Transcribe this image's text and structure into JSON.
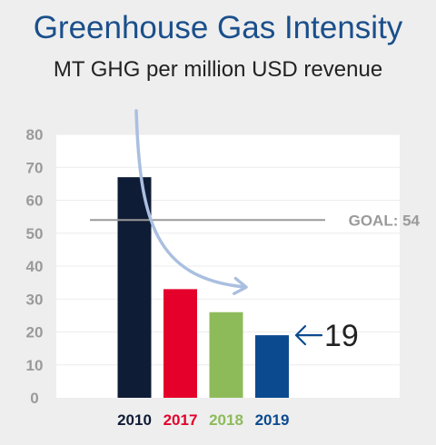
{
  "chart_data": {
    "type": "bar",
    "title": "Greenhouse Gas Intensity",
    "subtitle": "MT GHG per million USD revenue",
    "categories": [
      "2010",
      "2017",
      "2018",
      "2019"
    ],
    "values": [
      67,
      33,
      26,
      19
    ],
    "colors": [
      "#0f1c36",
      "#e4002b",
      "#8dbb5a",
      "#0b4a8f"
    ],
    "ylim": [
      0,
      80
    ],
    "yticks": [
      0,
      10,
      20,
      30,
      40,
      50,
      60,
      70,
      80
    ],
    "grid": true,
    "goal": {
      "value": 54,
      "label": "GOAL: 54",
      "color": "#9a9a9a"
    },
    "callout": {
      "category": "2019",
      "value": "19"
    },
    "trend_arrow": {
      "from_category": "2010",
      "to_category": "2018",
      "color": "#aabfe0"
    }
  }
}
